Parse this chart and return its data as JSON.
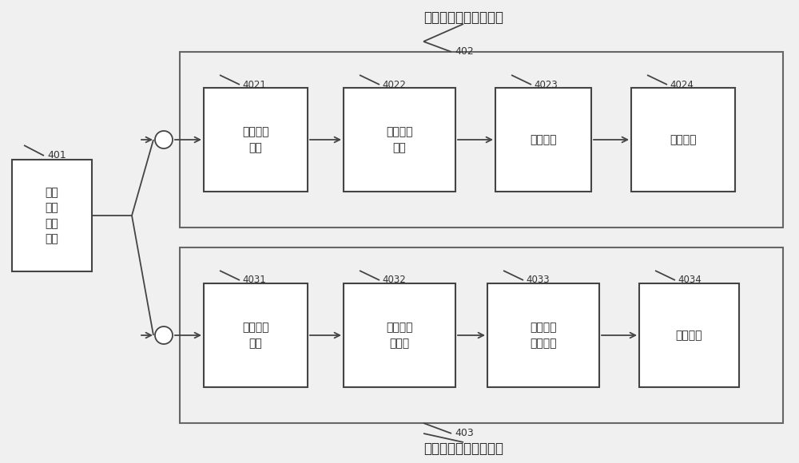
{
  "bg_color": "#f0f0f0",
  "title_top": "语音信号带宽扩展模块",
  "title_bottom": "音乐信号带宽扩展模块",
  "label_401": "401",
  "label_402": "402",
  "label_403": "403",
  "box_401_text": "信号\n类型\n检测\n模块",
  "box_4021_label": "4021",
  "box_4021_text": "低频残差\n提取",
  "box_4022_label": "4022",
  "box_4022_text": "包络信息\n提取",
  "box_4023_label": "4023",
  "box_4023_text": "增益提取",
  "box_4024_label": "4024",
  "box_4024_text": "重建模块",
  "box_4031_label": "4031",
  "box_4031_text": "加窗转化\n模块",
  "box_4032_label": "4032",
  "box_4032_text": "相关性计\n算模块",
  "box_4033_label": "4033",
  "box_4033_text": "能量参数\n提取模块",
  "box_4034_label": "4034",
  "box_4034_text": "重建模块",
  "line_color": "#444444",
  "box_facecolor": "#ffffff",
  "box_edgecolor": "#444444",
  "outer_edgecolor": "#666666",
  "text_color": "#222222",
  "label_color": "#333333"
}
